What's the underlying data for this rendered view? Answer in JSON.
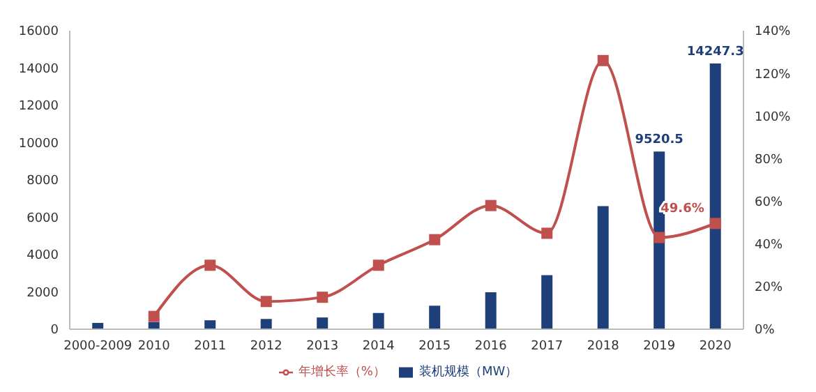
{
  "chart_data": {
    "type": "bar",
    "categories": [
      "2000-2009",
      "2010",
      "2011",
      "2012",
      "2013",
      "2014",
      "2015",
      "2016",
      "2017",
      "2018",
      "2019",
      "2020"
    ],
    "series": [
      {
        "name": "装机规模（MW）",
        "color": "#1f3f7a",
        "values": [
          340,
          380,
          480,
          550,
          630,
          870,
          1260,
          1980,
          2900,
          6600,
          9520.5,
          14247.3
        ],
        "value_labels": [
          null,
          null,
          null,
          null,
          null,
          null,
          null,
          null,
          null,
          null,
          "9520.5",
          "14247.3"
        ]
      },
      {
        "name": "年增长率（%）",
        "type": "line",
        "axis": "y2",
        "color": "#c0504d",
        "marker": "square",
        "values": [
          null,
          6,
          30,
          13,
          15,
          30,
          42,
          58,
          45,
          126,
          43,
          49.6
        ],
        "value_labels": [
          null,
          null,
          null,
          null,
          null,
          null,
          null,
          null,
          null,
          null,
          null,
          "49.6%"
        ]
      }
    ],
    "ylim": [
      0,
      16000
    ],
    "yticks": [
      0,
      2000,
      4000,
      6000,
      8000,
      10000,
      12000,
      14000,
      16000
    ],
    "y2lim": [
      0,
      140
    ],
    "y2ticks": [
      {
        "value": 0,
        "label": "0%"
      },
      {
        "value": 20,
        "label": "20%"
      },
      {
        "value": 40,
        "label": "40%"
      },
      {
        "value": 60,
        "label": "60%"
      },
      {
        "value": 80,
        "label": "80%"
      },
      {
        "value": 100,
        "label": "100%"
      },
      {
        "value": 120,
        "label": "120%"
      },
      {
        "value": 140,
        "label": "140%"
      }
    ],
    "grid": false,
    "legend": "bottom"
  }
}
